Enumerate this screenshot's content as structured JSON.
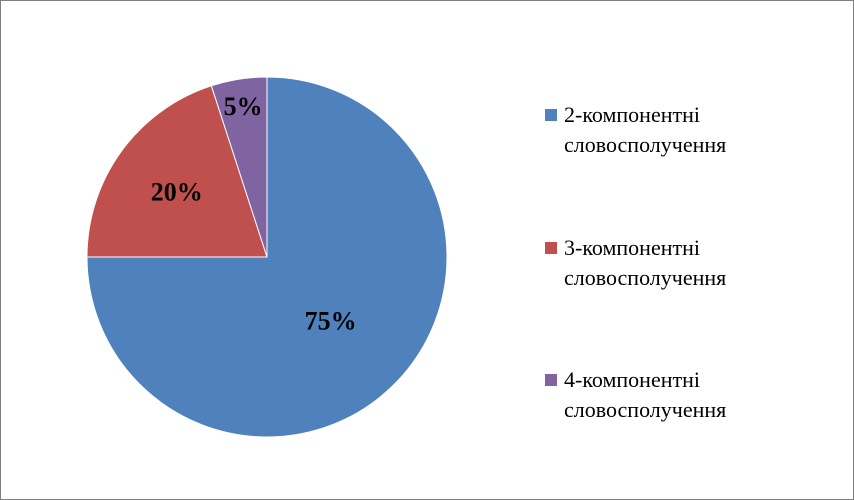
{
  "chart_data": {
    "type": "pie",
    "title": "",
    "slices": [
      {
        "label": "2-компонентні словосполучення",
        "value": 75,
        "display": "75%",
        "color": "#4F81BD"
      },
      {
        "label": "3-компонентні словосполучення",
        "value": 20,
        "display": "20%",
        "color": "#C0504D"
      },
      {
        "label": "4-компонентні словосполучення",
        "value": 5,
        "display": "5%",
        "color": "#8064A2"
      }
    ],
    "legend": {
      "position": "right",
      "entries": [
        {
          "line1": "2-компонентні",
          "line2": "словосполучення"
        },
        {
          "line1": "3-компонентні",
          "line2": "словосполучення"
        },
        {
          "line1": "4-компонентні",
          "line2": "словосполучення"
        }
      ]
    }
  }
}
